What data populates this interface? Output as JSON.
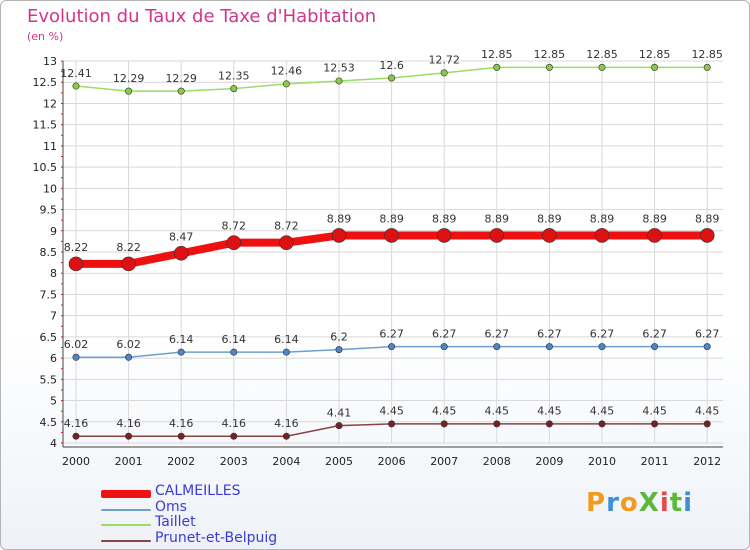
{
  "title": "Evolution du Taux de Taxe d'Habitation",
  "subtitle": "(en %)",
  "logo": {
    "text": "ProXiti",
    "colors": [
      "#f39a1c",
      "#3b8fd9",
      "#f39a1c",
      "#5cb83a",
      "#e8474c",
      "#5cb83a",
      "#3b8fd9"
    ]
  },
  "chart_data": {
    "type": "line",
    "x": [
      "2000",
      "2001",
      "2002",
      "2003",
      "2004",
      "2005",
      "2006",
      "2007",
      "2008",
      "2009",
      "2010",
      "2011",
      "2012"
    ],
    "ylim": [
      4,
      13
    ],
    "yticks": [
      "4",
      "4.5",
      "5",
      "5.5",
      "6",
      "6.5",
      "7",
      "7.5",
      "8",
      "8.5",
      "9",
      "9.5",
      "10",
      "10.5",
      "11",
      "11.5",
      "12",
      "12.5",
      "13"
    ],
    "grid": true,
    "legend_position": "bottom-left",
    "series": [
      {
        "name": "CALMEILLES",
        "color": "#ee1111",
        "marker": "#dd1111",
        "values": [
          8.22,
          8.22,
          8.47,
          8.72,
          8.72,
          8.89,
          8.89,
          8.89,
          8.89,
          8.89,
          8.89,
          8.89,
          8.89
        ],
        "labels": [
          "8.22",
          "8.22",
          "8.47",
          "8.72",
          "8.72",
          "8.89",
          "8.89",
          "8.89",
          "8.89",
          "8.89",
          "8.89",
          "8.89",
          "8.89"
        ]
      },
      {
        "name": "Oms",
        "color": "#6f9fcf",
        "marker": "#4a86c8",
        "values": [
          6.02,
          6.02,
          6.14,
          6.14,
          6.14,
          6.2,
          6.27,
          6.27,
          6.27,
          6.27,
          6.27,
          6.27,
          6.27
        ],
        "labels": [
          "6.02",
          "6.02",
          "6.14",
          "6.14",
          "6.14",
          "6.2",
          "6.27",
          "6.27",
          "6.27",
          "6.27",
          "6.27",
          "6.27",
          "6.27"
        ]
      },
      {
        "name": "Taillet",
        "color": "#99dd66",
        "marker": "#88cc44",
        "values": [
          12.41,
          12.29,
          12.29,
          12.35,
          12.46,
          12.53,
          12.6,
          12.72,
          12.85,
          12.85,
          12.85,
          12.85,
          12.85
        ],
        "labels": [
          "12.41",
          "12.29",
          "12.29",
          "12.35",
          "12.46",
          "12.53",
          "12.6",
          "12.72",
          "12.85",
          "12.85",
          "12.85",
          "12.85",
          "12.85"
        ]
      },
      {
        "name": "Prunet-et-Belpuig",
        "color": "#884444",
        "marker": "#772222",
        "values": [
          4.16,
          4.16,
          4.16,
          4.16,
          4.16,
          4.41,
          4.45,
          4.45,
          4.45,
          4.45,
          4.45,
          4.45,
          4.45
        ],
        "labels": [
          "4.16",
          "4.16",
          "4.16",
          "4.16",
          "4.16",
          "4.41",
          "4.45",
          "4.45",
          "4.45",
          "4.45",
          "4.45",
          "4.45",
          "4.45"
        ]
      }
    ]
  }
}
